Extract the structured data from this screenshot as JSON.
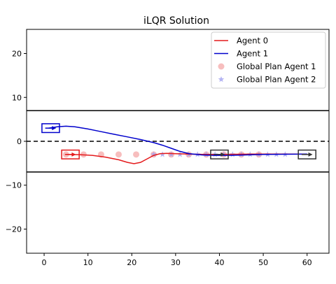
{
  "chart_data": {
    "type": "line",
    "title": "iLQR Solution",
    "xlabel": "",
    "ylabel": "",
    "xlim": [
      -4,
      65
    ],
    "ylim": [
      -25.5,
      25.5
    ],
    "x_ticks": [
      0,
      10,
      20,
      30,
      40,
      50,
      60
    ],
    "y_ticks": [
      -20,
      -10,
      0,
      10,
      20
    ],
    "grid": false,
    "legend_position": "top-right",
    "lane_lines": [
      {
        "y": 7,
        "style": "solid",
        "color": "#000000"
      },
      {
        "y": 0,
        "style": "dashed",
        "color": "#000000"
      },
      {
        "y": -7,
        "style": "solid",
        "color": "#000000"
      }
    ],
    "series": [
      {
        "name": "Agent 0",
        "kind": "line",
        "color": "#e41a1c",
        "points": [
          [
            5,
            -3
          ],
          [
            8,
            -3.05
          ],
          [
            11,
            -3.2
          ],
          [
            14,
            -3.6
          ],
          [
            17,
            -4.2
          ],
          [
            19,
            -4.8
          ],
          [
            20.5,
            -5.1
          ],
          [
            22,
            -4.8
          ],
          [
            23.5,
            -4
          ],
          [
            25,
            -3.2
          ],
          [
            26.5,
            -2.8
          ],
          [
            28,
            -2.75
          ],
          [
            31,
            -2.85
          ],
          [
            34,
            -2.95
          ],
          [
            37,
            -3
          ],
          [
            40,
            -3
          ],
          [
            44,
            -2.95
          ],
          [
            48,
            -2.9
          ],
          [
            52,
            -2.9
          ],
          [
            56,
            -2.9
          ],
          [
            60,
            -2.9
          ]
        ]
      },
      {
        "name": "Agent 1",
        "kind": "line",
        "color": "#0000cc",
        "points": [
          [
            1,
            3
          ],
          [
            3,
            3.3
          ],
          [
            5,
            3.45
          ],
          [
            7,
            3.3
          ],
          [
            10,
            2.8
          ],
          [
            13,
            2.2
          ],
          [
            16,
            1.6
          ],
          [
            19,
            1
          ],
          [
            22,
            0.4
          ],
          [
            25,
            -0.3
          ],
          [
            27,
            -0.9
          ],
          [
            29,
            -1.6
          ],
          [
            31,
            -2.3
          ],
          [
            33,
            -2.8
          ],
          [
            36,
            -3.1
          ],
          [
            39,
            -3.2
          ],
          [
            42,
            -3.2
          ],
          [
            46,
            -3.1
          ],
          [
            50,
            -3
          ],
          [
            55,
            -2.95
          ],
          [
            60,
            -2.9
          ]
        ]
      },
      {
        "name": "Global Plan Agent 1",
        "kind": "scatter",
        "marker": "circle",
        "color": "#f4a3a3",
        "points": [
          [
            5,
            -3
          ],
          [
            9,
            -3
          ],
          [
            13,
            -3
          ],
          [
            17,
            -3
          ],
          [
            21,
            -3
          ],
          [
            25,
            -3
          ],
          [
            29,
            -3
          ],
          [
            33,
            -3
          ],
          [
            37,
            -3
          ],
          [
            41,
            -3
          ],
          [
            45,
            -3
          ],
          [
            49,
            -3
          ]
        ]
      },
      {
        "name": "Global Plan Agent 2",
        "kind": "scatter",
        "marker": "star",
        "color": "#a3a3f0",
        "points": [
          [
            25,
            -3
          ],
          [
            27,
            -3
          ],
          [
            29,
            -3
          ],
          [
            31,
            -3
          ],
          [
            33,
            -3
          ],
          [
            35,
            -3
          ],
          [
            37,
            -3
          ],
          [
            39,
            -3
          ],
          [
            41,
            -3
          ],
          [
            43,
            -3
          ],
          [
            45,
            -3
          ],
          [
            47,
            -3
          ],
          [
            49,
            -3
          ],
          [
            51,
            -3
          ],
          [
            53,
            -3
          ],
          [
            55,
            -3
          ]
        ]
      }
    ],
    "vehicles": [
      {
        "cx": 1.5,
        "cy": 3,
        "w": 4,
        "h": 2,
        "color": "#0000cc",
        "arrow_len": 2.5
      },
      {
        "cx": 6,
        "cy": -3,
        "w": 4,
        "h": 2,
        "color": "#e41a1c",
        "arrow_len": 2.5
      },
      {
        "cx": 40,
        "cy": -3,
        "w": 4,
        "h": 2,
        "color": "#333333",
        "arrow_len": 2.5
      },
      {
        "cx": 60,
        "cy": -3,
        "w": 4,
        "h": 2,
        "color": "#333333",
        "arrow_len": 2.5
      }
    ]
  }
}
